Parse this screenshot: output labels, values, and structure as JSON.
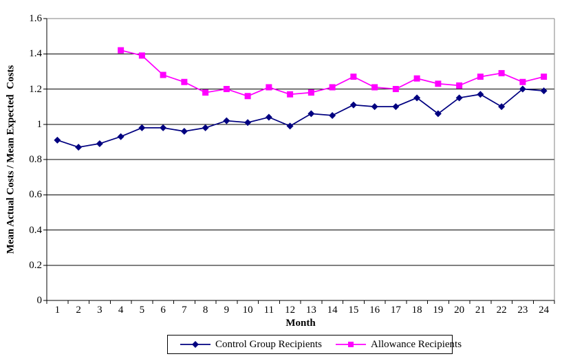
{
  "chart_data": {
    "type": "line",
    "xlabel": "Month",
    "ylabel": "Mean Actual Costs / Mean Expected  Costs",
    "categories": [
      "1",
      "2",
      "3",
      "4",
      "5",
      "6",
      "7",
      "8",
      "9",
      "10",
      "11",
      "12",
      "13",
      "14",
      "15",
      "16",
      "17",
      "18",
      "19",
      "20",
      "21",
      "22",
      "23",
      "24"
    ],
    "ylim": [
      0,
      1.6
    ],
    "y_ticks": [
      0,
      0.2,
      0.4,
      0.6,
      0.8,
      1,
      1.2,
      1.4,
      1.6
    ],
    "y_tick_labels": [
      "0",
      "0.2",
      "0.4",
      "0.6",
      "0.8",
      "1",
      "1.2",
      "1.4",
      "1.6"
    ],
    "grid": true,
    "legend_position": "bottom",
    "plot_border_color": "#808080",
    "gridline_color": "#000000",
    "series": [
      {
        "name": "Control Group Recipients",
        "color": "#000080",
        "marker": "diamond",
        "values": [
          0.91,
          0.87,
          0.89,
          0.93,
          0.98,
          0.98,
          0.96,
          0.98,
          1.02,
          1.01,
          1.04,
          0.99,
          1.06,
          1.05,
          1.11,
          1.1,
          1.1,
          1.15,
          1.06,
          1.15,
          1.17,
          1.1,
          1.2,
          1.19
        ]
      },
      {
        "name": "Allowance Recipients",
        "color": "#FF00FF",
        "marker": "square",
        "values": [
          null,
          null,
          null,
          1.42,
          1.39,
          1.28,
          1.24,
          1.18,
          1.2,
          1.16,
          1.21,
          1.17,
          1.18,
          1.21,
          1.27,
          1.21,
          1.2,
          1.26,
          1.23,
          1.22,
          1.27,
          1.29,
          1.24,
          1.27
        ]
      }
    ]
  }
}
